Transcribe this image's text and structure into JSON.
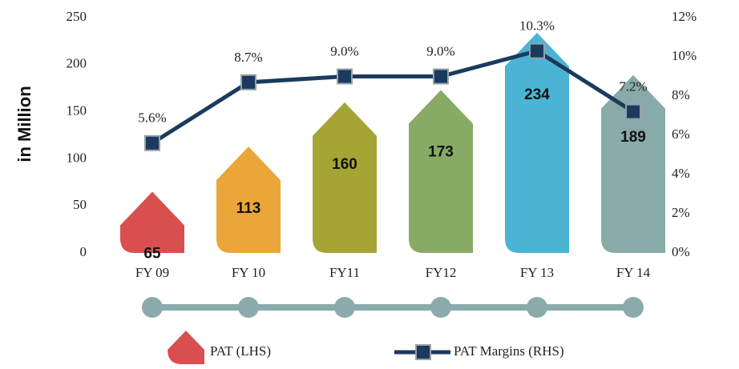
{
  "chart_data": {
    "type": "bar-line",
    "ylabel": "in Million",
    "categories": [
      "FY 09",
      "FY 10",
      "FY11",
      "FY12",
      "FY 13",
      "FY 14"
    ],
    "series": [
      {
        "name": "PAT (LHS)",
        "type": "bar",
        "color": "#d94f4f",
        "colors": [
          "#d94f4f",
          "#eba63a",
          "#a5a535",
          "#87ab64",
          "#4bb4d5",
          "#88aaa9"
        ],
        "values": [
          65,
          113,
          160,
          173,
          234,
          189
        ]
      },
      {
        "name": "PAT Margins (RHS)",
        "type": "line",
        "axis": "y2",
        "color": "#1b3a5e",
        "values": [
          5.6,
          8.7,
          9.0,
          9.0,
          10.3,
          7.2
        ],
        "value_labels": [
          "5.6%",
          "8.7%",
          "9.0%",
          "9.0%",
          "10.3%",
          "7.2%"
        ]
      }
    ],
    "ylim": [
      0,
      250
    ],
    "yticks": [
      0,
      50,
      100,
      150,
      200,
      250
    ],
    "y2lim": [
      0,
      12
    ],
    "y2ticks": [
      {
        "value": 0,
        "label": "0%"
      },
      {
        "value": 2,
        "label": "2%"
      },
      {
        "value": 4,
        "label": "4%"
      },
      {
        "value": 6,
        "label": "6%"
      },
      {
        "value": 8,
        "label": "8%"
      },
      {
        "value": 10,
        "label": "10%"
      },
      {
        "value": 12,
        "label": "12%"
      }
    ]
  }
}
